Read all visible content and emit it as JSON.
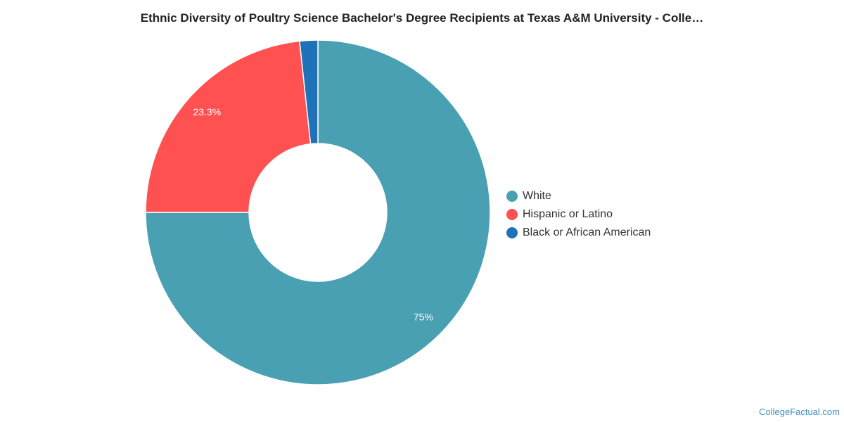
{
  "chart_data": {
    "type": "pie",
    "donut": true,
    "title": "Ethnic Diversity of Poultry Science Bachelor's Degree Recipients at Texas A&M University - Colle…",
    "series": [
      {
        "name": "White",
        "value": 75.0,
        "label": "75%",
        "color": "#4aa0b3"
      },
      {
        "name": "Hispanic or Latino",
        "value": 23.3,
        "label": "23.3%",
        "color": "#ff5152"
      },
      {
        "name": "Black or African American",
        "value": 1.7,
        "label": "",
        "color": "#1f72b8"
      }
    ],
    "legend_position": "right"
  },
  "watermark": "CollegeFactual.com"
}
